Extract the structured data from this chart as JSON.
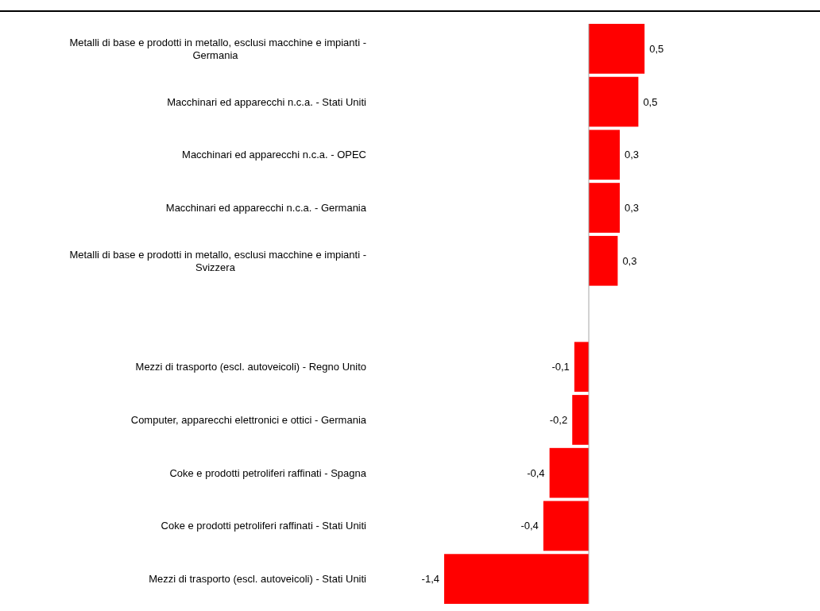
{
  "chart_data": {
    "type": "bar",
    "orientation": "horizontal",
    "categories": [
      "Metalli di base e prodotti in metallo, esclusi macchine e impianti - Germania",
      "Macchinari ed apparecchi n.c.a. - Stati Uniti",
      "Macchinari ed apparecchi n.c.a. - OPEC",
      "Macchinari ed apparecchi n.c.a. - Germania",
      "Metalli di base e prodotti in metallo, esclusi macchine e impianti - Svizzera",
      null,
      "Mezzi di trasporto (escl. autoveicoli) - Regno Unito",
      "Computer, apparecchi elettronici e ottici - Germania",
      "Coke e prodotti petroliferi raffinati - Spagna",
      "Coke e prodotti petroliferi raffinati - Stati Uniti",
      "Mezzi di trasporto (escl. autoveicoli) - Stati Uniti"
    ],
    "values": [
      0.54,
      0.48,
      0.3,
      0.3,
      0.28,
      null,
      -0.14,
      -0.16,
      -0.38,
      -0.44,
      -1.4
    ],
    "value_labels": [
      "0,5",
      "0,5",
      "0,3",
      "0,3",
      "0,3",
      null,
      "-0,1",
      "-0,2",
      "-0,4",
      "-0,4",
      "-1,4"
    ],
    "color": "#ff0000"
  }
}
